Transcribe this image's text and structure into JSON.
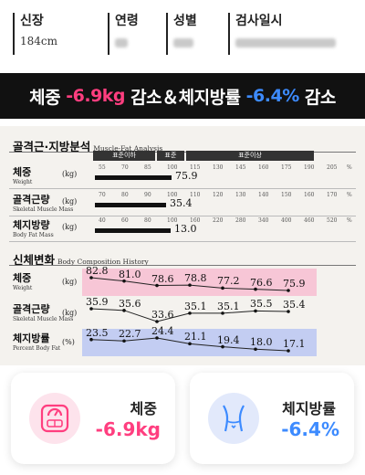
{
  "info": {
    "height_label": "신장",
    "height_value": "184cm",
    "age_label": "연령",
    "gender_label": "성별",
    "date_label": "검사일시"
  },
  "banner": {
    "part1": "체중 ",
    "part2": "-6.9kg",
    "part3": " 감소＆체지방률 ",
    "part4": "-6.4%",
    "part5": " 감소"
  },
  "muscle_fat": {
    "title": "골격근·지방분석",
    "title_en": "Muscle-Fat Analysis",
    "headers": [
      "표준이하",
      "표준",
      "표준이상"
    ],
    "rows": [
      {
        "ko": "체중",
        "en": "Weight",
        "unit": "(kg)",
        "value": "75.9",
        "ticks": [
          "55",
          "70",
          "85",
          "100",
          "115",
          "130",
          "145",
          "160",
          "175",
          "190",
          "205"
        ],
        "tick_end": "%",
        "level": 0.6
      },
      {
        "ko": "골격근량",
        "en": "Skeletal Muscle Mass",
        "unit": "(kg)",
        "value": "35.4",
        "ticks": [
          "70",
          "80",
          "90",
          "100",
          "110",
          "120",
          "130",
          "140",
          "150",
          "160",
          "170"
        ],
        "tick_end": "%",
        "level": 0.56
      },
      {
        "ko": "체지방량",
        "en": "Body Fat Mass",
        "unit": "(kg)",
        "value": "13.0",
        "ticks": [
          "40",
          "60",
          "80",
          "100",
          "160",
          "220",
          "280",
          "340",
          "400",
          "460",
          "520"
        ],
        "tick_end": "%",
        "level": 0.59
      }
    ]
  },
  "history": {
    "title": "신체변화",
    "title_en": "Body Composition History",
    "rows": [
      {
        "ko": "체중",
        "en": "Weight",
        "unit": "(kg)",
        "values": [
          "82.8",
          "81.0",
          "78.6",
          "78.8",
          "77.2",
          "76.6",
          "75.9"
        ],
        "nums": [
          82.8,
          81.0,
          78.6,
          78.8,
          77.2,
          76.6,
          75.9
        ],
        "band_color": "#f7c6d6"
      },
      {
        "ko": "골격근량",
        "en": "Skeletal Muscle Mass",
        "unit": "(kg)",
        "values": [
          "35.9",
          "35.6",
          "33.6",
          "35.1",
          "35.1",
          "35.5",
          "35.4"
        ],
        "nums": [
          35.9,
          35.6,
          33.6,
          35.1,
          35.1,
          35.5,
          35.4
        ],
        "band_color": ""
      },
      {
        "ko": "체지방률",
        "en": "Percent Body Fat",
        "unit": "(%)",
        "values": [
          "23.5",
          "22.7",
          "24.4",
          "21.1",
          "19.4",
          "18.0",
          "17.1"
        ],
        "nums": [
          23.5,
          22.7,
          24.4,
          21.1,
          19.4,
          18.0,
          17.1
        ],
        "band_color": "#c3cdf2"
      }
    ]
  },
  "cards": [
    {
      "title": "체중",
      "value": "-6.9kg",
      "icon": "scale-icon",
      "color": "#ff3e7f",
      "icon_bg": "#fde3ec"
    },
    {
      "title": "체지방률",
      "value": "-6.4%",
      "icon": "waist-icon",
      "color": "#3d8bff",
      "icon_bg": "#e2e9fb"
    }
  ]
}
